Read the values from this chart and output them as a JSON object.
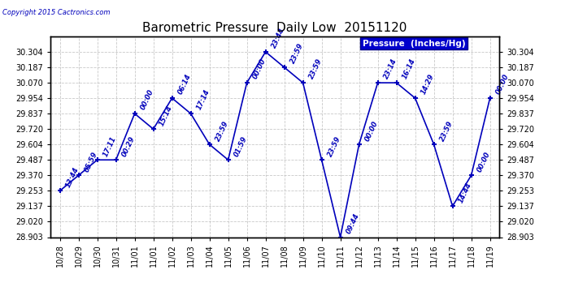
{
  "title": "Barometric Pressure  Daily Low  20151120",
  "copyright": "Copyright 2015 Cactronics.com",
  "legend_label": "Pressure  (Inches/Hg)",
  "x_labels": [
    "10/28",
    "10/29",
    "10/30",
    "10/31",
    "11/01",
    "11/01",
    "11/02",
    "11/03",
    "11/04",
    "11/05",
    "11/06",
    "11/07",
    "11/08",
    "11/09",
    "11/10",
    "11/11",
    "11/12",
    "11/13",
    "11/14",
    "11/15",
    "11/16",
    "11/17",
    "11/18",
    "11/19"
  ],
  "x_positions": [
    0,
    1,
    2,
    3,
    4,
    5,
    6,
    7,
    8,
    9,
    10,
    11,
    12,
    13,
    14,
    15,
    16,
    17,
    18,
    19,
    20,
    21,
    22,
    23
  ],
  "y_values": [
    29.253,
    29.37,
    29.487,
    29.487,
    29.837,
    29.72,
    29.954,
    29.837,
    29.604,
    29.487,
    30.07,
    30.304,
    30.187,
    30.07,
    29.487,
    28.903,
    29.604,
    30.07,
    30.07,
    29.954,
    29.604,
    29.137,
    29.37,
    29.954
  ],
  "point_labels": [
    "13:44",
    "05:59",
    "17:11",
    "00:29",
    "00:00",
    "15:14",
    "06:14",
    "17:14",
    "23:59",
    "01:59",
    "00:00",
    "23:44",
    "23:59",
    "23:59",
    "23:59",
    "09:44",
    "00:00",
    "23:14",
    "16:14",
    "14:29",
    "23:59",
    "14:44",
    "00:00",
    "00:00"
  ],
  "ylim_min": 28.903,
  "ylim_max": 30.42,
  "yticks": [
    28.903,
    29.02,
    29.137,
    29.253,
    29.37,
    29.487,
    29.604,
    29.72,
    29.837,
    29.954,
    30.07,
    30.187,
    30.304
  ],
  "line_color": "#0000bb",
  "marker_color": "#0000bb",
  "bg_color": "#ffffff",
  "plot_bg_color": "#ffffff",
  "grid_color": "#bbbbbb",
  "title_color": "#000000",
  "copyright_color": "#0000bb",
  "legend_bg": "#0000cc",
  "legend_text_color": "#ffffff",
  "label_fontsize": 6.0,
  "tick_fontsize": 7.0,
  "title_fontsize": 11.0
}
